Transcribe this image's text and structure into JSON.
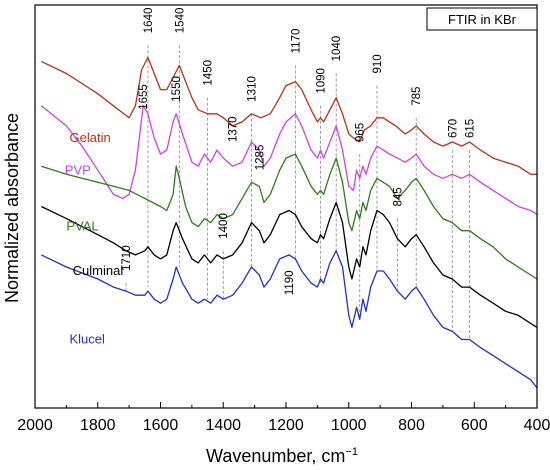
{
  "chart_data": {
    "type": "line",
    "title": "FTIR in KBr",
    "xlabel": "Wavenumber, cm",
    "xlabel_sup": "−1",
    "ylabel": "Normalized absorbance",
    "xlim": [
      2000,
      400
    ],
    "x_reversed": true,
    "ylim": [
      0,
      1
    ],
    "y_ticks_shown": false,
    "x_ticks": [
      {
        "value": 2000,
        "label": "2000"
      },
      {
        "value": 1800,
        "label": "1800"
      },
      {
        "value": 1600,
        "label": "1600"
      },
      {
        "value": 1400,
        "label": "1400"
      },
      {
        "value": 1200,
        "label": "1200"
      },
      {
        "value": 1000,
        "label": "1000"
      },
      {
        "value": 800,
        "label": "800"
      },
      {
        "value": 600,
        "label": "600"
      },
      {
        "value": 400,
        "label": "400"
      }
    ],
    "series": [
      {
        "name": "Gelatin",
        "color": "#b5341b",
        "x": [
          1980,
          1900,
          1800,
          1750,
          1700,
          1680,
          1660,
          1640,
          1620,
          1600,
          1580,
          1560,
          1540,
          1520,
          1500,
          1480,
          1450,
          1420,
          1400,
          1370,
          1340,
          1310,
          1280,
          1250,
          1220,
          1200,
          1170,
          1150,
          1120,
          1100,
          1090,
          1080,
          1060,
          1040,
          1020,
          1000,
          985,
          965,
          950,
          930,
          910,
          890,
          870,
          850,
          820,
          800,
          785,
          760,
          730,
          700,
          670,
          640,
          615,
          580,
          540,
          500,
          460,
          420,
          400
        ],
        "y": [
          0.86,
          0.83,
          0.78,
          0.75,
          0.72,
          0.75,
          0.84,
          0.87,
          0.83,
          0.79,
          0.79,
          0.82,
          0.85,
          0.81,
          0.77,
          0.74,
          0.73,
          0.73,
          0.72,
          0.7,
          0.71,
          0.73,
          0.72,
          0.73,
          0.77,
          0.8,
          0.81,
          0.79,
          0.74,
          0.71,
          0.72,
          0.71,
          0.74,
          0.77,
          0.73,
          0.68,
          0.67,
          0.66,
          0.69,
          0.7,
          0.72,
          0.72,
          0.71,
          0.7,
          0.68,
          0.69,
          0.7,
          0.68,
          0.66,
          0.65,
          0.66,
          0.65,
          0.66,
          0.64,
          0.62,
          0.61,
          0.6,
          0.58,
          0.58
        ]
      },
      {
        "name": "PVP",
        "color": "#cc44dd",
        "x": [
          1980,
          1900,
          1850,
          1800,
          1750,
          1720,
          1700,
          1680,
          1655,
          1640,
          1620,
          1600,
          1580,
          1560,
          1550,
          1530,
          1500,
          1480,
          1460,
          1440,
          1420,
          1400,
          1370,
          1340,
          1310,
          1285,
          1270,
          1250,
          1220,
          1200,
          1170,
          1150,
          1120,
          1100,
          1090,
          1080,
          1060,
          1040,
          1020,
          1000,
          985,
          975,
          965,
          955,
          945,
          930,
          910,
          890,
          870,
          845,
          820,
          800,
          785,
          760,
          730,
          700,
          670,
          640,
          615,
          580,
          540,
          500,
          460,
          420,
          400
        ],
        "y": [
          0.75,
          0.7,
          0.65,
          0.59,
          0.53,
          0.52,
          0.53,
          0.59,
          0.75,
          0.73,
          0.67,
          0.63,
          0.64,
          0.71,
          0.73,
          0.68,
          0.61,
          0.6,
          0.63,
          0.61,
          0.64,
          0.62,
          0.6,
          0.61,
          0.66,
          0.64,
          0.6,
          0.62,
          0.68,
          0.71,
          0.73,
          0.7,
          0.64,
          0.62,
          0.64,
          0.62,
          0.66,
          0.7,
          0.64,
          0.55,
          0.54,
          0.59,
          0.57,
          0.6,
          0.58,
          0.62,
          0.65,
          0.64,
          0.63,
          0.62,
          0.61,
          0.62,
          0.63,
          0.6,
          0.58,
          0.57,
          0.58,
          0.57,
          0.58,
          0.56,
          0.54,
          0.52,
          0.5,
          0.49,
          0.48
        ]
      },
      {
        "name": "PVAL",
        "color": "#2e7d1a",
        "x": [
          1980,
          1900,
          1800,
          1750,
          1700,
          1650,
          1600,
          1580,
          1560,
          1550,
          1540,
          1520,
          1500,
          1480,
          1460,
          1440,
          1420,
          1400,
          1370,
          1340,
          1310,
          1285,
          1270,
          1250,
          1220,
          1200,
          1170,
          1150,
          1120,
          1100,
          1090,
          1080,
          1060,
          1040,
          1020,
          1000,
          990,
          975,
          965,
          955,
          945,
          930,
          910,
          890,
          870,
          845,
          820,
          800,
          785,
          760,
          730,
          700,
          670,
          640,
          615,
          580,
          540,
          500,
          460,
          420,
          400
        ],
        "y": [
          0.6,
          0.58,
          0.56,
          0.55,
          0.54,
          0.52,
          0.5,
          0.49,
          0.53,
          0.6,
          0.57,
          0.5,
          0.46,
          0.45,
          0.47,
          0.46,
          0.48,
          0.47,
          0.48,
          0.52,
          0.56,
          0.55,
          0.51,
          0.53,
          0.59,
          0.62,
          0.63,
          0.6,
          0.55,
          0.53,
          0.54,
          0.53,
          0.58,
          0.62,
          0.56,
          0.46,
          0.44,
          0.49,
          0.47,
          0.51,
          0.49,
          0.54,
          0.57,
          0.56,
          0.55,
          0.52,
          0.54,
          0.56,
          0.57,
          0.54,
          0.5,
          0.47,
          0.46,
          0.44,
          0.44,
          0.42,
          0.4,
          0.37,
          0.35,
          0.33,
          0.32
        ]
      },
      {
        "name": "Culminal",
        "color": "#000000",
        "x": [
          1980,
          1900,
          1800,
          1750,
          1710,
          1680,
          1650,
          1640,
          1620,
          1600,
          1580,
          1560,
          1550,
          1530,
          1500,
          1480,
          1460,
          1440,
          1420,
          1400,
          1370,
          1340,
          1310,
          1285,
          1270,
          1250,
          1220,
          1190,
          1170,
          1150,
          1120,
          1100,
          1090,
          1080,
          1060,
          1040,
          1020,
          1000,
          990,
          975,
          965,
          955,
          945,
          930,
          910,
          890,
          870,
          845,
          820,
          800,
          785,
          760,
          730,
          700,
          670,
          640,
          615,
          580,
          540,
          500,
          460,
          420,
          400
        ],
        "y": [
          0.5,
          0.47,
          0.43,
          0.41,
          0.39,
          0.38,
          0.39,
          0.4,
          0.38,
          0.37,
          0.38,
          0.44,
          0.46,
          0.42,
          0.37,
          0.36,
          0.38,
          0.36,
          0.38,
          0.37,
          0.38,
          0.41,
          0.46,
          0.44,
          0.41,
          0.43,
          0.48,
          0.49,
          0.48,
          0.45,
          0.42,
          0.41,
          0.43,
          0.42,
          0.47,
          0.51,
          0.46,
          0.35,
          0.32,
          0.37,
          0.35,
          0.4,
          0.38,
          0.44,
          0.49,
          0.48,
          0.46,
          0.42,
          0.4,
          0.42,
          0.43,
          0.4,
          0.36,
          0.33,
          0.32,
          0.3,
          0.3,
          0.28,
          0.26,
          0.24,
          0.23,
          0.21,
          0.2
        ]
      },
      {
        "name": "Klucel",
        "color": "#2233bb",
        "x": [
          1980,
          1900,
          1800,
          1750,
          1710,
          1680,
          1650,
          1640,
          1620,
          1600,
          1580,
          1560,
          1550,
          1530,
          1500,
          1480,
          1460,
          1440,
          1420,
          1400,
          1370,
          1340,
          1310,
          1285,
          1270,
          1250,
          1220,
          1190,
          1170,
          1150,
          1120,
          1100,
          1090,
          1080,
          1060,
          1040,
          1020,
          1000,
          990,
          975,
          965,
          955,
          945,
          930,
          910,
          890,
          870,
          845,
          820,
          800,
          785,
          760,
          730,
          700,
          670,
          640,
          615,
          580,
          540,
          500,
          460,
          420,
          400
        ],
        "y": [
          0.38,
          0.35,
          0.32,
          0.3,
          0.29,
          0.28,
          0.28,
          0.29,
          0.27,
          0.26,
          0.27,
          0.32,
          0.35,
          0.31,
          0.27,
          0.26,
          0.27,
          0.26,
          0.28,
          0.27,
          0.28,
          0.31,
          0.35,
          0.33,
          0.3,
          0.32,
          0.37,
          0.38,
          0.37,
          0.34,
          0.31,
          0.3,
          0.32,
          0.31,
          0.36,
          0.39,
          0.35,
          0.23,
          0.2,
          0.25,
          0.22,
          0.27,
          0.24,
          0.3,
          0.34,
          0.34,
          0.32,
          0.29,
          0.27,
          0.29,
          0.3,
          0.27,
          0.23,
          0.2,
          0.19,
          0.17,
          0.17,
          0.15,
          0.13,
          0.11,
          0.09,
          0.07,
          0.05
        ]
      }
    ],
    "series_labels": [
      {
        "text": "Gelatin",
        "series": 0,
        "x": 1890,
        "y": 0.66
      },
      {
        "text": "PVP",
        "series": 1,
        "x": 1905,
        "y": 0.58
      },
      {
        "text": "PVAL",
        "series": 2,
        "x": 1900,
        "y": 0.44
      },
      {
        "text": "Culminal",
        "series": 3,
        "x": 1880,
        "y": 0.33
      },
      {
        "text": "Klucel",
        "series": 4,
        "x": 1890,
        "y": 0.16
      }
    ],
    "peak_annotations": [
      {
        "label": "1640",
        "x": 1640,
        "y_label": 0.93,
        "y_from": 0.9,
        "y_to": 0.3
      },
      {
        "label": "1540",
        "x": 1540,
        "y_label": 0.93,
        "y_from": 0.9,
        "y_to": 0.35
      },
      {
        "label": "1450",
        "x": 1450,
        "y_label": 0.8,
        "y_from": 0.77,
        "y_to": 0.27
      },
      {
        "label": "1310",
        "x": 1310,
        "y_label": 0.76,
        "y_from": 0.73,
        "y_to": 0.35
      },
      {
        "label": "1170",
        "x": 1170,
        "y_label": 0.88,
        "y_from": 0.85,
        "y_to": 0.37
      },
      {
        "label": "1090",
        "x": 1090,
        "y_label": 0.78,
        "y_from": 0.75,
        "y_to": 0.31
      },
      {
        "label": "1040",
        "x": 1040,
        "y_label": 0.86,
        "y_from": 0.83,
        "y_to": 0.39
      },
      {
        "label": "965",
        "x": 965,
        "y_label": 0.66,
        "y_from": 0.63,
        "y_to": 0.22
      },
      {
        "label": "910",
        "x": 910,
        "y_label": 0.83,
        "y_from": 0.8,
        "y_to": 0.34
      },
      {
        "label": "785",
        "x": 785,
        "y_label": 0.75,
        "y_from": 0.72,
        "y_to": 0.3
      },
      {
        "label": "670",
        "x": 670,
        "y_label": 0.67,
        "y_from": 0.64,
        "y_to": 0.19
      },
      {
        "label": "615",
        "x": 615,
        "y_label": 0.67,
        "y_from": 0.64,
        "y_to": 0.17
      },
      {
        "label": "1655",
        "x": 1655,
        "y_label": 0.74,
        "y_from": null,
        "y_to": null
      },
      {
        "label": "1550",
        "x": 1550,
        "y_label": 0.76,
        "y_from": null,
        "y_to": null
      },
      {
        "label": "1370",
        "x": 1370,
        "y_label": 0.66,
        "y_from": null,
        "y_to": null
      },
      {
        "label": "1285",
        "x": 1285,
        "y_label": 0.59,
        "y_from": null,
        "y_to": null
      },
      {
        "label": "845",
        "x": 845,
        "y_label": 0.5,
        "y_from": 0.47,
        "y_to": 0.29
      },
      {
        "label": "1400",
        "x": 1400,
        "y_label": 0.42,
        "y_from": 0.39,
        "y_to": 0.27
      },
      {
        "label": "1710",
        "x": 1710,
        "y_label": 0.34,
        "y_from": 0.31,
        "y_to": 0.29
      },
      {
        "label": "1190",
        "x": 1190,
        "y_label": 0.28,
        "y_from": null,
        "y_to": null
      }
    ],
    "grid": false,
    "legend_placement": "top-right"
  }
}
